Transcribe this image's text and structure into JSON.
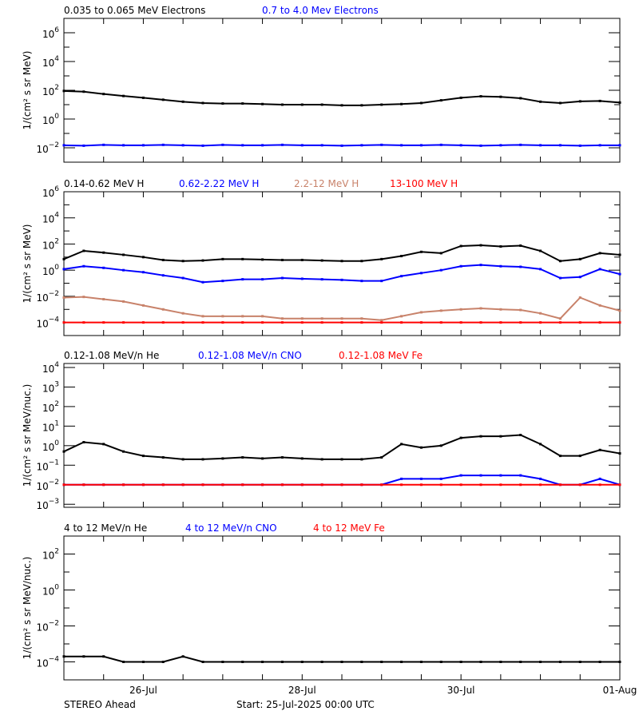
{
  "footer": {
    "left": "STEREO Ahead",
    "center": "Start: 25-Jul-2025 00:00 UTC"
  },
  "x_axis": {
    "start": "2025-07-25T00:00",
    "end": "2025-08-01T00:00",
    "tick_labels": [
      {
        "date": "2025-07-26",
        "label": "26-Jul"
      },
      {
        "date": "2025-07-28",
        "label": "28-Jul"
      },
      {
        "date": "2025-07-30",
        "label": "30-Jul"
      },
      {
        "date": "2025-08-01",
        "label": "01-Aug"
      }
    ]
  },
  "chart_data": [
    {
      "type": "scatter",
      "yscale": "log",
      "ylim": [
        0.001,
        10000000
      ],
      "ylabel": "1/(cm² s sr MeV)",
      "y_ticks": [
        1000000,
        10000,
        100,
        1,
        0.01
      ],
      "x_hours": [
        0,
        6,
        12,
        18,
        24,
        30,
        36,
        42,
        48,
        54,
        60,
        66,
        72,
        78,
        84,
        90,
        96,
        102,
        108,
        114,
        120,
        126,
        132,
        138,
        144,
        150,
        156,
        162,
        168
      ],
      "series": [
        {
          "name": "0.035 to 0.065 MeV Electrons",
          "color": "#000000",
          "values": [
            90,
            80,
            55,
            40,
            30,
            22,
            16,
            13,
            12,
            12,
            11,
            10,
            10,
            10,
            9,
            9,
            10,
            11,
            13,
            20,
            30,
            38,
            35,
            28,
            16,
            13,
            17,
            18,
            14
          ]
        },
        {
          "name": "0.7 to 4.0 Mev Electrons",
          "color": "#0000ff",
          "values": [
            0.015,
            0.014,
            0.016,
            0.015,
            0.015,
            0.016,
            0.015,
            0.014,
            0.016,
            0.015,
            0.015,
            0.016,
            0.015,
            0.015,
            0.014,
            0.015,
            0.016,
            0.015,
            0.015,
            0.016,
            0.015,
            0.014,
            0.015,
            0.016,
            0.015,
            0.015,
            0.014,
            0.015,
            0.015
          ]
        }
      ]
    },
    {
      "type": "scatter",
      "yscale": "log",
      "ylim": [
        1e-05,
        1000000
      ],
      "ylabel": "1/(cm² s sr MeV)",
      "y_ticks": [
        1000000,
        10000,
        100,
        1,
        0.01,
        0.0001
      ],
      "x_hours": [
        0,
        6,
        12,
        18,
        24,
        30,
        36,
        42,
        48,
        54,
        60,
        66,
        72,
        78,
        84,
        90,
        96,
        102,
        108,
        114,
        120,
        126,
        132,
        138,
        144,
        150,
        156,
        162,
        168
      ],
      "series": [
        {
          "name": "0.14-0.62 MeV H",
          "color": "#000000",
          "values": [
            7,
            30,
            22,
            15,
            10,
            6,
            5,
            5.5,
            7,
            7,
            6.5,
            6,
            6,
            5.5,
            5,
            5,
            7,
            12,
            25,
            20,
            70,
            80,
            65,
            75,
            30,
            5,
            7,
            20,
            15
          ]
        },
        {
          "name": "0.62-2.22 MeV H",
          "color": "#0000ff",
          "values": [
            1.2,
            2,
            1.5,
            1,
            0.7,
            0.4,
            0.25,
            0.12,
            0.15,
            0.2,
            0.2,
            0.25,
            0.22,
            0.2,
            0.18,
            0.15,
            0.15,
            0.35,
            0.6,
            1,
            2,
            2.5,
            2,
            1.8,
            1.2,
            0.25,
            0.3,
            1.2,
            0.5
          ]
        },
        {
          "name": "2.2-12 MeV H",
          "color": "#c8826a",
          "values": [
            0.008,
            0.009,
            0.006,
            0.004,
            0.002,
            0.001,
            0.0005,
            0.0003,
            0.0003,
            0.0003,
            0.0003,
            0.0002,
            0.0002,
            0.0002,
            0.0002,
            0.0002,
            0.00015,
            0.0003,
            0.0006,
            0.0008,
            0.001,
            0.0012,
            0.001,
            0.0009,
            0.0005,
            0.0002,
            0.008,
            0.002,
            0.0008
          ]
        },
        {
          "name": "13-100 MeV H",
          "color": "#ff0000",
          "values": [
            0.0001,
            0.0001,
            0.0001,
            0.0001,
            0.0001,
            0.0001,
            0.0001,
            0.0001,
            0.0001,
            0.0001,
            0.0001,
            0.0001,
            0.0001,
            0.0001,
            0.0001,
            0.0001,
            0.0001,
            0.0001,
            0.0001,
            0.0001,
            0.0001,
            0.0001,
            0.0001,
            0.0001,
            0.0001,
            0.0001,
            0.0001,
            0.0001,
            0.0001
          ]
        }
      ]
    },
    {
      "type": "scatter",
      "yscale": "log",
      "ylim": [
        0.0007,
        16000
      ],
      "ylabel": "1/(cm² s sr MeV/nuc.)",
      "y_ticks": [
        10000,
        1000,
        100,
        10,
        1,
        0.1,
        0.01,
        0.001
      ],
      "x_hours": [
        0,
        6,
        12,
        18,
        24,
        30,
        36,
        42,
        48,
        54,
        60,
        66,
        72,
        78,
        84,
        90,
        96,
        102,
        108,
        114,
        120,
        126,
        132,
        138,
        144,
        150,
        156,
        162,
        168
      ],
      "series": [
        {
          "name": "0.12-1.08 MeV/n He",
          "color": "#000000",
          "values": [
            0.5,
            1.5,
            1.2,
            0.5,
            0.3,
            0.25,
            0.2,
            0.2,
            0.22,
            0.25,
            0.22,
            0.25,
            0.22,
            0.2,
            0.2,
            0.2,
            0.25,
            1.2,
            0.8,
            1,
            2.5,
            3,
            3,
            3.5,
            1.2,
            0.3,
            0.3,
            0.6,
            0.4
          ]
        },
        {
          "name": "0.12-1.08 MeV/n CNO",
          "color": "#0000ff",
          "values": [
            0.01,
            0.01,
            0.01,
            0.01,
            0.01,
            0.01,
            0.01,
            0.01,
            0.01,
            0.01,
            0.01,
            0.01,
            0.01,
            0.01,
            0.01,
            0.01,
            0.01,
            0.02,
            0.02,
            0.02,
            0.03,
            0.03,
            0.03,
            0.03,
            0.02,
            0.01,
            0.01,
            0.02,
            0.01
          ]
        },
        {
          "name": "0.12-1.08 MeV Fe",
          "color": "#ff0000",
          "values": [
            0.01,
            0.01,
            0.01,
            0.01,
            0.01,
            0.01,
            0.01,
            0.01,
            0.01,
            0.01,
            0.01,
            0.01,
            0.01,
            0.01,
            0.01,
            0.01,
            0.01,
            0.01,
            0.01,
            0.01,
            0.01,
            0.01,
            0.01,
            0.01,
            0.01,
            0.01,
            0.01,
            0.01,
            0.01
          ]
        }
      ]
    },
    {
      "type": "scatter",
      "yscale": "log",
      "ylim": [
        1e-05,
        1000
      ],
      "ylabel": "1/(cm² s sr MeV/nuc.)",
      "y_ticks": [
        100,
        1,
        0.01,
        0.0001
      ],
      "x_hours": [
        0,
        6,
        12,
        18,
        24,
        30,
        36,
        42,
        48,
        54,
        60,
        66,
        72,
        78,
        84,
        90,
        96,
        102,
        108,
        114,
        120,
        126,
        132,
        138,
        144,
        150,
        156,
        162,
        168
      ],
      "series": [
        {
          "name": "4 to 12 MeV/n He",
          "color": "#000000",
          "values": [
            0.0002,
            0.0002,
            0.0002,
            0.0001,
            0.0001,
            0.0001,
            0.0002,
            0.0001,
            0.0001,
            0.0001,
            0.0001,
            0.0001,
            0.0001,
            0.0001,
            0.0001,
            0.0001,
            0.0001,
            0.0001,
            0.0001,
            0.0001,
            0.0001,
            0.0001,
            0.0001,
            0.0001,
            0.0001,
            0.0001,
            0.0001,
            0.0001,
            0.0001
          ]
        },
        {
          "name": "4 to 12 MeV/n CNO",
          "color": "#0000ff",
          "values": []
        },
        {
          "name": "4 to 12 MeV Fe",
          "color": "#ff0000",
          "values": []
        }
      ]
    }
  ]
}
